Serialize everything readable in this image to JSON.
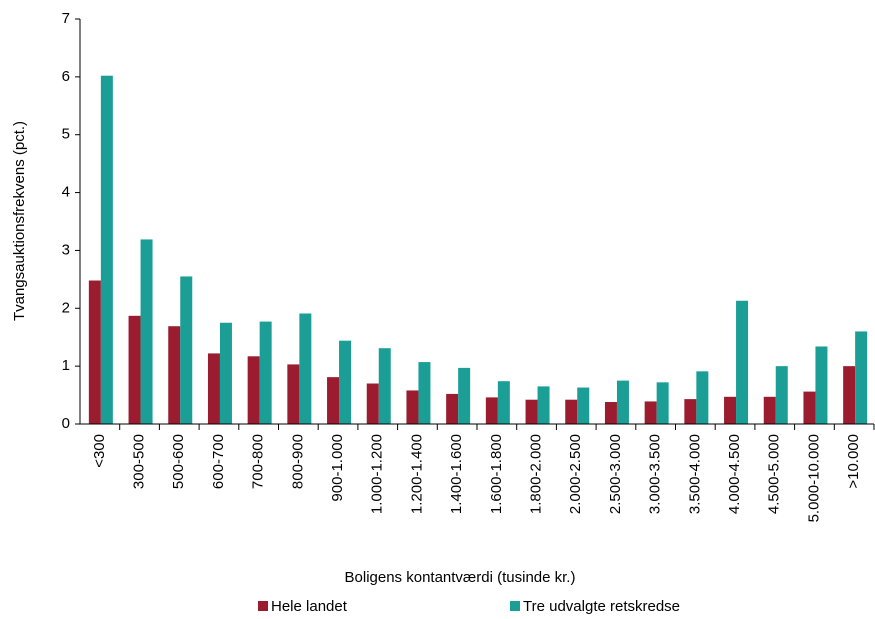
{
  "chart_data": {
    "type": "bar",
    "xlabel": "Boligens kontantværdi (tusinde kr.)",
    "ylabel": "Tvangsauktionsfrekvens (pct.)",
    "categories": [
      "<300",
      "300-500",
      "500-600",
      "600-700",
      "700-800",
      "800-900",
      "900-1.000",
      "1.000-1.200",
      "1.200-1.400",
      "1.400-1.600",
      "1.600-1.800",
      "1.800-2.000",
      "2.000-2.500",
      "2.500-3.000",
      "3.000-3.500",
      "3.500-4.000",
      "4.000-4.500",
      "4.500-5.000",
      "5.000-10.000",
      ">10.000"
    ],
    "series": [
      {
        "name": "Hele landet",
        "color": "#9b1c2e",
        "values": [
          2.48,
          1.87,
          1.69,
          1.22,
          1.17,
          1.03,
          0.81,
          0.7,
          0.58,
          0.52,
          0.46,
          0.42,
          0.42,
          0.38,
          0.39,
          0.43,
          0.47,
          0.47,
          0.56,
          1.0
        ]
      },
      {
        "name": "Tre udvalgte retskredse",
        "color": "#1a9e96",
        "values": [
          6.02,
          3.19,
          2.55,
          1.75,
          1.77,
          1.91,
          1.44,
          1.31,
          1.07,
          0.97,
          0.74,
          0.65,
          0.63,
          0.75,
          0.72,
          0.91,
          2.13,
          1.0,
          1.34,
          1.6
        ]
      }
    ],
    "ylim": [
      0,
      7
    ],
    "yticks": [
      0,
      1,
      2,
      3,
      4,
      5,
      6,
      7
    ],
    "grid": false
  }
}
